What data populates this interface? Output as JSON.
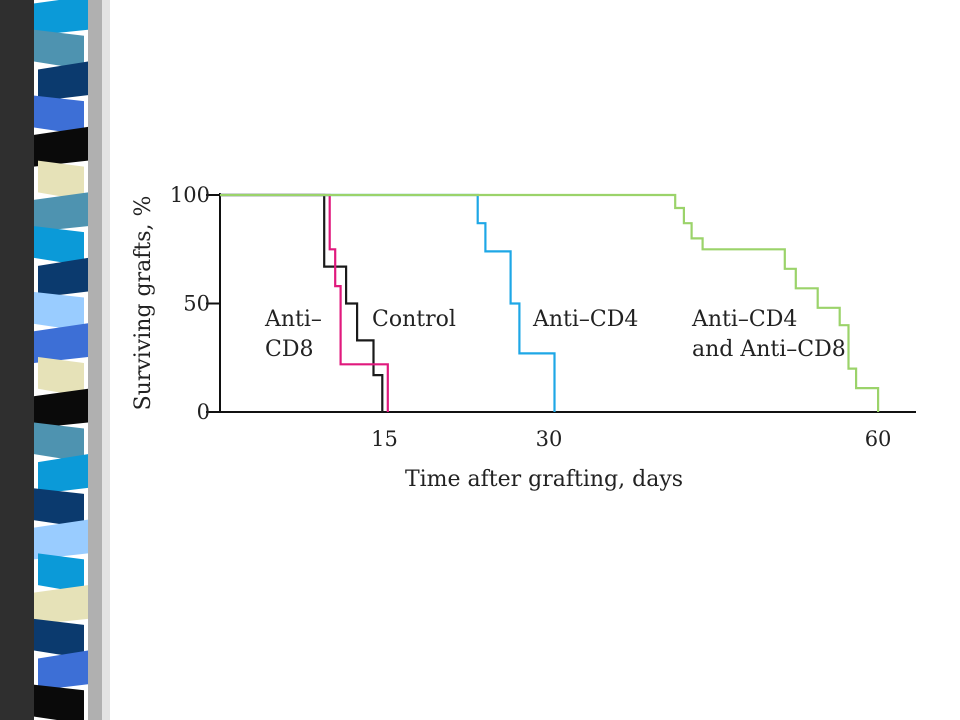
{
  "decor": {
    "strip_colors": [
      "#0b9ad8",
      "#4e93b0",
      "#0b3a6e",
      "#3d6fd6",
      "#0a0a0a",
      "#e6e2b8",
      "#4e93b0",
      "#0b9ad8",
      "#0b3a6e",
      "#99ccff",
      "#3d6fd6",
      "#e6e2b8",
      "#0a0a0a",
      "#4e93b0",
      "#0b9ad8",
      "#0b3a6e",
      "#99ccff",
      "#0b9ad8",
      "#e6e2b8",
      "#0b3a6e",
      "#3d6fd6",
      "#0a0a0a"
    ]
  },
  "chart_data": {
    "type": "line",
    "step": true,
    "xlabel": "Time after grafting, days",
    "ylabel": "Surviving grafts, %",
    "xlim": [
      0,
      62
    ],
    "ylim": [
      0,
      100
    ],
    "x_ticks": [
      15,
      30,
      60
    ],
    "x_tick_labels": [
      "15",
      "30",
      "60"
    ],
    "y_ticks": [
      0,
      50,
      100
    ],
    "y_tick_labels": [
      "0",
      "50",
      "100"
    ],
    "grid": false,
    "legend": "direct labels",
    "series": [
      {
        "name": "Control",
        "color": "#1a1a1a",
        "points": [
          [
            0,
            100
          ],
          [
            9.5,
            100
          ],
          [
            9.5,
            67
          ],
          [
            11.5,
            67
          ],
          [
            11.5,
            50
          ],
          [
            12.5,
            50
          ],
          [
            12.5,
            33
          ],
          [
            14.0,
            33
          ],
          [
            14.0,
            17
          ],
          [
            14.8,
            17
          ],
          [
            14.8,
            0
          ]
        ]
      },
      {
        "name": "Anti–CD8",
        "label_lines": [
          "Anti–",
          "CD8"
        ],
        "color": "#e0197d",
        "points": [
          [
            0,
            100
          ],
          [
            10.0,
            100
          ],
          [
            10.0,
            75
          ],
          [
            10.5,
            75
          ],
          [
            10.5,
            58
          ],
          [
            11.0,
            58
          ],
          [
            11.0,
            22
          ],
          [
            15.3,
            22
          ],
          [
            15.3,
            0
          ]
        ]
      },
      {
        "name": "Anti–CD4",
        "color": "#1ea7e6",
        "points": [
          [
            0,
            100
          ],
          [
            23.5,
            100
          ],
          [
            23.5,
            87
          ],
          [
            24.2,
            87
          ],
          [
            24.2,
            74
          ],
          [
            26.5,
            74
          ],
          [
            26.5,
            50
          ],
          [
            27.3,
            50
          ],
          [
            27.3,
            27
          ],
          [
            30.5,
            27
          ],
          [
            30.5,
            0
          ]
        ]
      },
      {
        "name": "Anti–CD4 and Anti–CD8",
        "label_lines": [
          "Anti–CD4",
          "and Anti–CD8"
        ],
        "color": "#9bd36a",
        "points": [
          [
            0,
            100
          ],
          [
            41.5,
            100
          ],
          [
            41.5,
            94
          ],
          [
            42.3,
            94
          ],
          [
            42.3,
            87
          ],
          [
            43.0,
            87
          ],
          [
            43.0,
            80
          ],
          [
            44.0,
            80
          ],
          [
            44.0,
            75
          ],
          [
            51.5,
            75
          ],
          [
            51.5,
            66
          ],
          [
            52.5,
            66
          ],
          [
            52.5,
            57
          ],
          [
            54.5,
            57
          ],
          [
            54.5,
            48
          ],
          [
            56.5,
            48
          ],
          [
            56.5,
            40
          ],
          [
            57.3,
            40
          ],
          [
            57.3,
            20
          ],
          [
            58.0,
            20
          ],
          [
            58.0,
            11
          ],
          [
            60.0,
            11
          ],
          [
            60.0,
            0
          ]
        ]
      }
    ]
  }
}
